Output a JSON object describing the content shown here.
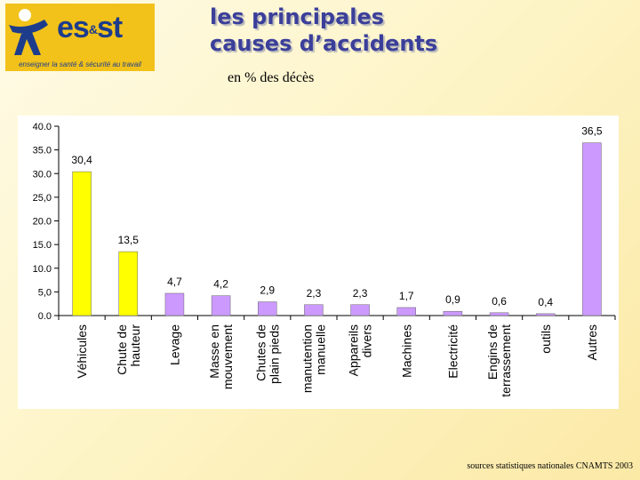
{
  "logo": {
    "brand": "es",
    "amp": "&",
    "brand2": "st",
    "tagline": "enseigner la santé & sécurité au travail"
  },
  "header": {
    "title_line1": "les principales",
    "title_line2": "causes d’accidents",
    "subtitle": "en % des décès"
  },
  "footer": {
    "source": "sources statistiques nationales CNAMTS 2003"
  },
  "colors": {
    "yellow": "#ffff00",
    "purple": "#cc99ff",
    "axis": "#000000"
  },
  "chart_data": {
    "type": "bar",
    "title": "",
    "xlabel": "",
    "ylabel": "",
    "ylim": [
      0,
      40
    ],
    "yticks": [
      "0.0",
      "5,0",
      "10.0",
      "15.0",
      "20.0",
      "25,0",
      "30.0",
      "35.0",
      "40.0"
    ],
    "categories": [
      [
        "Véhicules"
      ],
      [
        "Chute de",
        "hauteur"
      ],
      [
        "Levage"
      ],
      [
        "Masse en",
        "mouvement"
      ],
      [
        "Chutes de",
        "plain pieds"
      ],
      [
        "manutention",
        "manuelle"
      ],
      [
        "Appareils",
        "divers"
      ],
      [
        "Machines"
      ],
      [
        "Electricité"
      ],
      [
        "Engins de",
        "terrassement"
      ],
      [
        "outils"
      ],
      [
        "Autres"
      ]
    ],
    "values": [
      30.4,
      13.5,
      4.7,
      4.2,
      2.9,
      2.3,
      2.3,
      1.7,
      0.9,
      0.6,
      0.4,
      36.5
    ],
    "labels": [
      "30,4",
      "13,5",
      "4,7",
      "4,2",
      "2,9",
      "2,3",
      "2,3",
      "1,7",
      "0,9",
      "0,6",
      "0,4",
      "36,5"
    ],
    "bar_colors": [
      "yellow",
      "yellow",
      "purple",
      "purple",
      "purple",
      "purple",
      "purple",
      "purple",
      "purple",
      "purple",
      "purple",
      "purple"
    ]
  }
}
